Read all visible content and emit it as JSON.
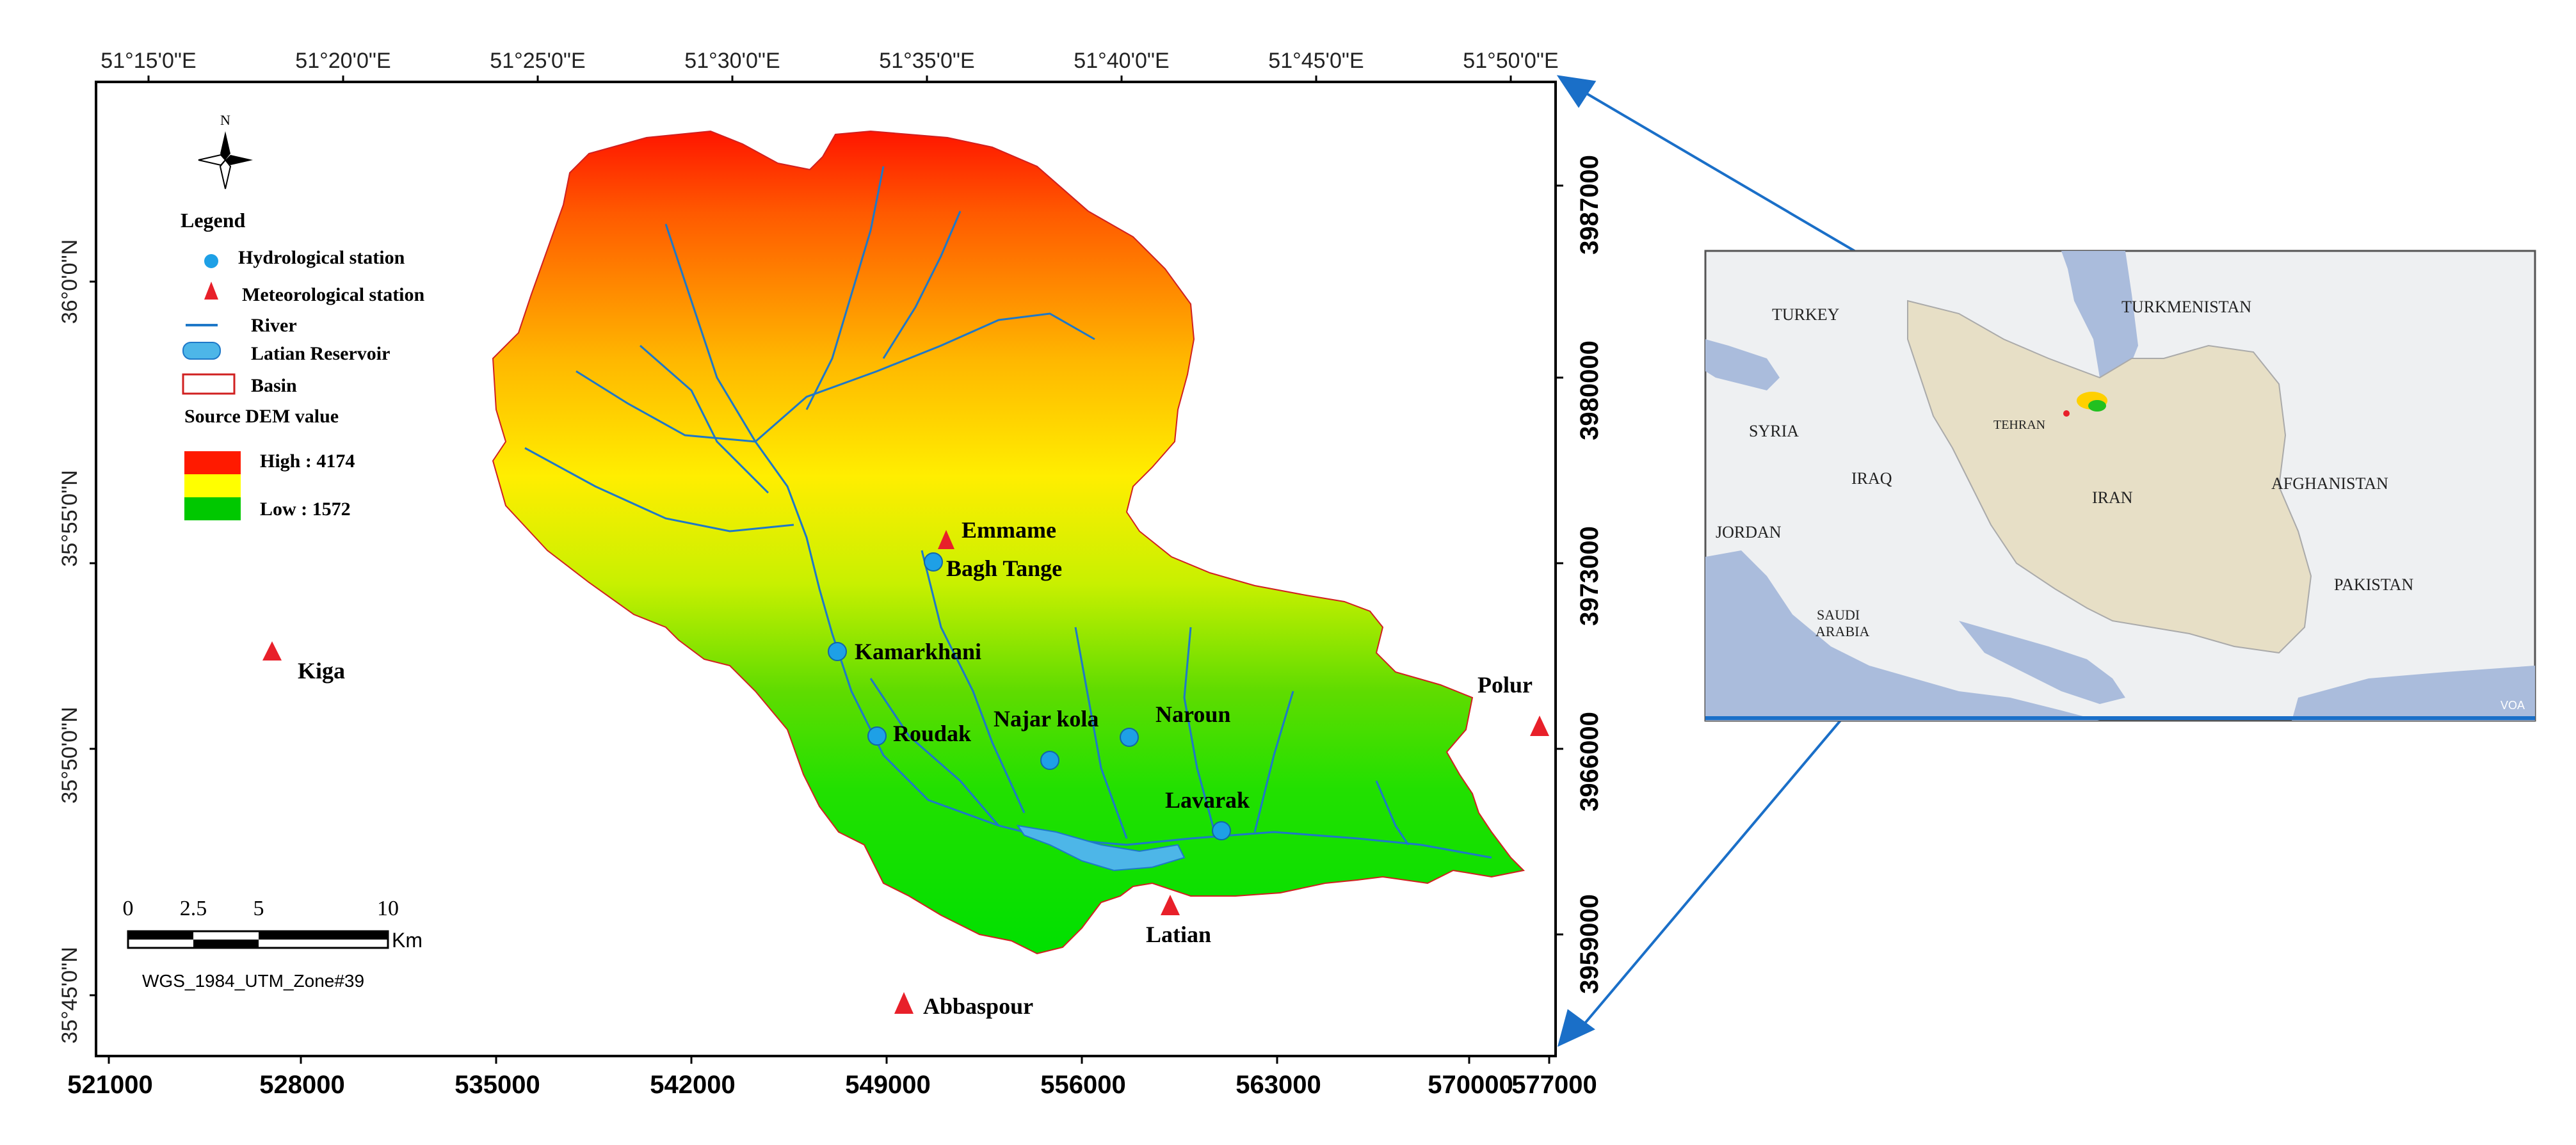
{
  "top_axis": [
    "51°15'0\"E",
    "51°20'0\"E",
    "51°25'0\"E",
    "51°30'0\"E",
    "51°35'0\"E",
    "51°40'0\"E",
    "51°45'0\"E",
    "51°50'0\"E"
  ],
  "bottom_axis": [
    "521000",
    "528000",
    "535000",
    "542000",
    "549000",
    "556000",
    "563000",
    "570000",
    "577000"
  ],
  "left_axis": [
    "36°0'0\"N",
    "35°55'0\"N",
    "35°50'0\"N",
    "35°45'0\"N"
  ],
  "right_axis": [
    "3987000",
    "3980000",
    "3973000",
    "3966000",
    "3959000"
  ],
  "north_arrow": "N",
  "legend": {
    "title": "Legend",
    "hydro": "Hydrological station",
    "meteo": "Meteorological station",
    "river": "River",
    "reservoir": "Latian Reservoir",
    "basin": "Basin",
    "dem_title": "Source DEM value",
    "high": "High : 4174",
    "low": "Low : 1572"
  },
  "colors": {
    "high": "#ff1a00",
    "mid": "#ffff00",
    "low": "#00c800",
    "hydro": "#1ea0e6",
    "meteo": "#e8202a",
    "river": "#1e78c8",
    "basin_outline": "#d02020",
    "arrow": "#1a6fc8"
  },
  "hydro_stations": [
    "Bagh Tange",
    "Kamarkhani",
    "Roudak",
    "Najar kola",
    "Naroun",
    "Lavarak"
  ],
  "meteo_stations": [
    "Emmame",
    "Kiga",
    "Polur",
    "Latian",
    "Abbaspour"
  ],
  "scale_bar": {
    "labels": [
      "0",
      "2.5",
      "5",
      "10"
    ],
    "unit": "Km"
  },
  "projection": "WGS_1984_UTM_Zone#39",
  "inset": {
    "countries": [
      "TURKEY",
      "TURKMENISTAN",
      "SYRIA",
      "IRAQ",
      "IRAN",
      "AFGHANISTAN",
      "JORDAN",
      "PAKISTAN",
      "SAUDI",
      "ARABIA"
    ],
    "city": "TEHRAN",
    "watermark": "VOA"
  }
}
